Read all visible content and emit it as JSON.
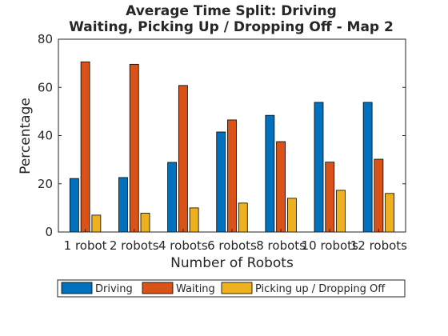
{
  "chart_data": {
    "type": "bar",
    "title": "Average Time Split: Driving",
    "subtitle": "Waiting, Picking Up / Dropping Off - Map 2",
    "xlabel": "Number of Robots",
    "ylabel": "Percentage",
    "categories": [
      "1 robot",
      "2 robots",
      "4 robots",
      "6 robots",
      "8 robots",
      "10 robots",
      "12 robots"
    ],
    "ylim": [
      0,
      80
    ],
    "yticks": [
      0,
      20,
      40,
      60,
      80
    ],
    "grid": false,
    "legend_position": "bottom",
    "series": [
      {
        "name": "Driving",
        "color": "#0072BD",
        "values": [
          22.2,
          22.6,
          28.9,
          41.5,
          48.4,
          53.8,
          53.8
        ]
      },
      {
        "name": "Waiting",
        "color": "#D95319",
        "values": [
          70.6,
          69.6,
          60.8,
          46.5,
          37.5,
          29.0,
          30.2
        ]
      },
      {
        "name": "Picking up / Dropping Off",
        "color": "#EDB120",
        "values": [
          7.0,
          7.8,
          10.0,
          12.0,
          14.0,
          17.3,
          16.0
        ]
      }
    ]
  }
}
